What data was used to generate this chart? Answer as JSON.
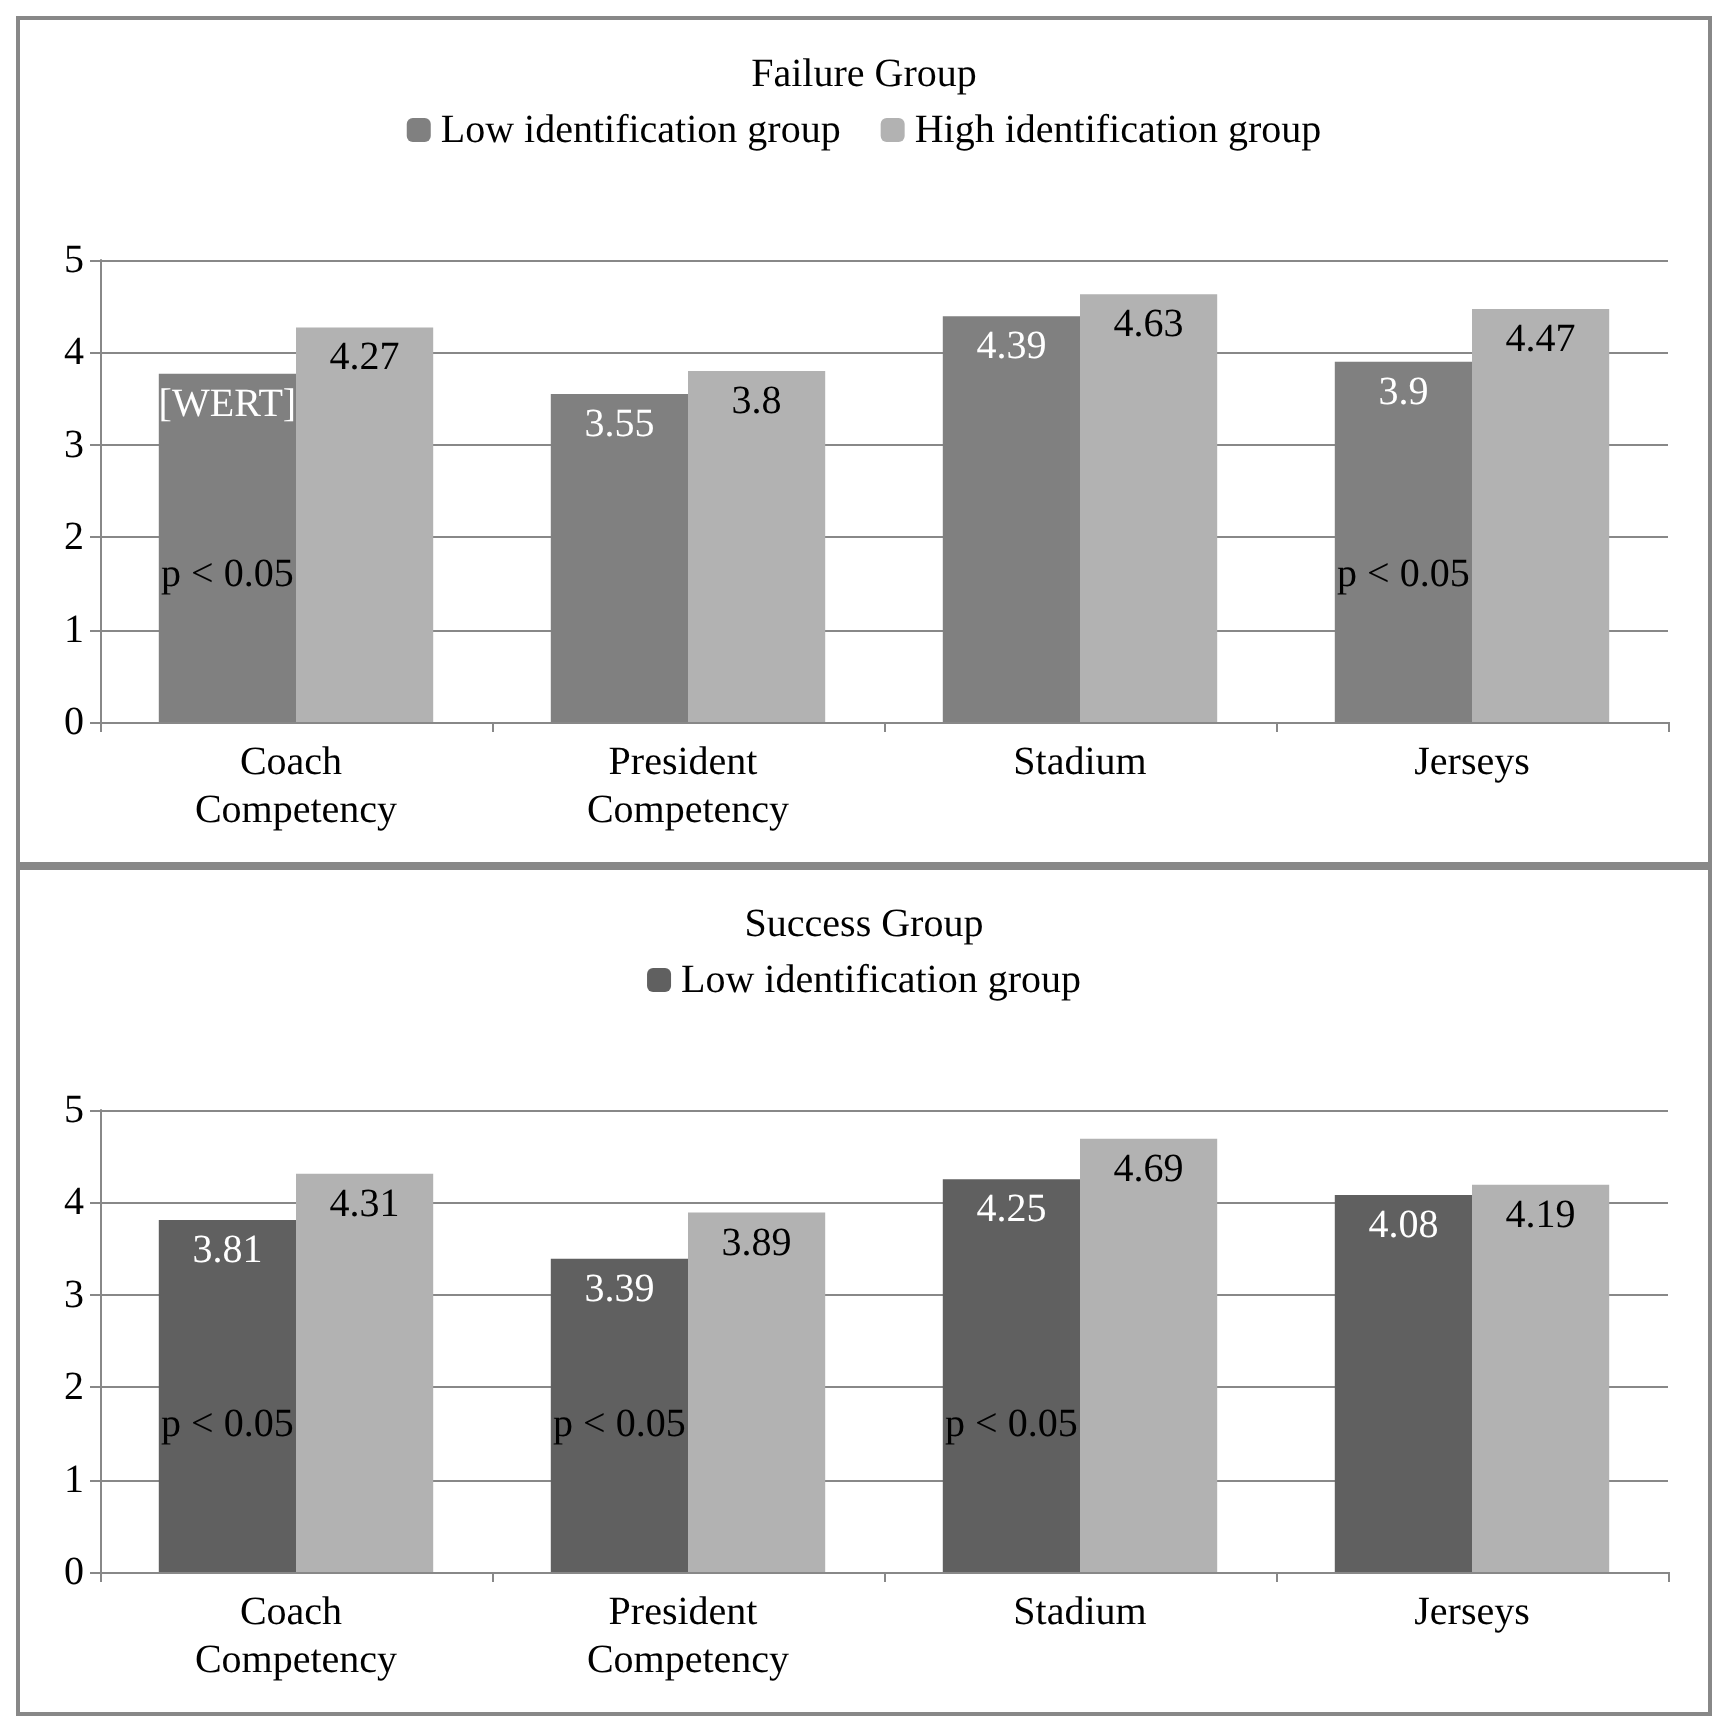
{
  "chart_data": [
    {
      "type": "bar",
      "title": "Failure Group",
      "categories": [
        "Coach Competency",
        "President Competency",
        "Stadium",
        "Jerseys"
      ],
      "series": [
        {
          "name": "Low identification group",
          "color": "#808080",
          "values": [
            3.77,
            3.55,
            4.39,
            3.9
          ],
          "value_labels": [
            "[WERT]",
            "3.55",
            "4.39",
            "3.9"
          ]
        },
        {
          "name": "High identification group",
          "color": "#b2b2b2",
          "values": [
            4.27,
            3.8,
            4.63,
            4.47
          ],
          "value_labels": [
            "4.27",
            "3.8",
            "4.63",
            "4.47"
          ]
        }
      ],
      "annotations": [
        {
          "text": "p < 0.05",
          "x": "Coach Competency",
          "y": 1.6
        },
        {
          "text": "p < 0.05",
          "x": "Jerseys",
          "y": 1.6
        }
      ],
      "ylim": [
        0,
        5
      ],
      "yticks": [
        0,
        1,
        2,
        3,
        4,
        5
      ],
      "grid": "y",
      "legend": "top"
    },
    {
      "type": "bar",
      "title": "Success Group",
      "categories": [
        "Coach Competency",
        "President Competency",
        "Stadium",
        "Jerseys"
      ],
      "series": [
        {
          "name": "Low identification group",
          "color": "#606060",
          "values": [
            3.81,
            3.39,
            4.25,
            4.08
          ],
          "value_labels": [
            "3.81",
            "3.39",
            "4.25",
            "4.08"
          ]
        },
        {
          "color": "#b2b2b2",
          "values": [
            4.31,
            3.89,
            4.69,
            4.19
          ],
          "value_labels": [
            "4.31",
            "3.89",
            "4.69",
            "4.19"
          ]
        }
      ],
      "annotations": [
        {
          "text": "p < 0.05",
          "x": "Coach Competency",
          "y": 1.6
        },
        {
          "text": "p < 0.05",
          "x": "President Competency",
          "y": 1.6
        },
        {
          "text": "p < 0.05",
          "x": "Stadium",
          "y": 1.6
        }
      ],
      "ylim": [
        0,
        5
      ],
      "yticks": [
        0,
        1,
        2,
        3,
        4,
        5
      ],
      "grid": "y",
      "legend": "top"
    }
  ]
}
